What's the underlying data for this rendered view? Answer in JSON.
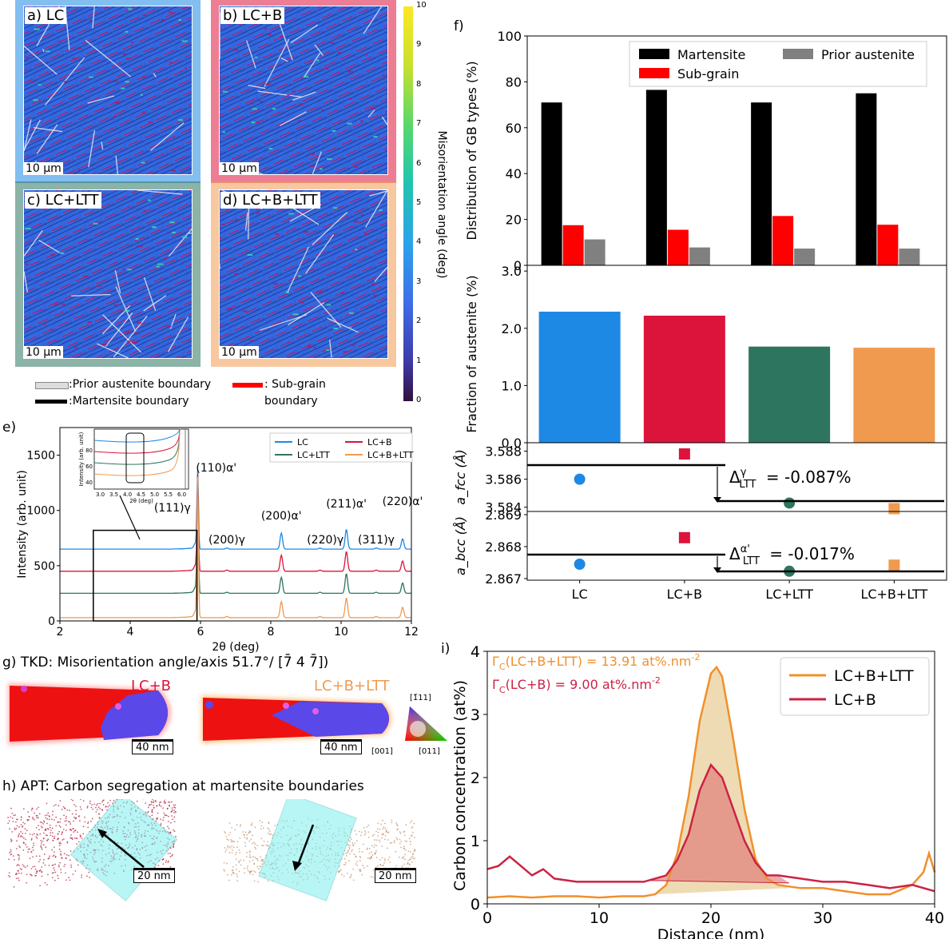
{
  "colors": {
    "lc": "#1e88e5",
    "lcb": "#dc143c",
    "lcltt": "#2e7560",
    "lcbltt": "#f09a50",
    "martensite": "#000000",
    "subgrain": "#ff0000",
    "prior": "#808080",
    "segB": "#cc2244",
    "segBLTT": "#f0902c"
  },
  "ebsd": {
    "panels": [
      {
        "label": "a) LC",
        "scale": "10 µm",
        "border": "#1e88e5"
      },
      {
        "label": "b) LC+B",
        "scale": "10 µm",
        "border": "#dc143c"
      },
      {
        "label": "c) LC+LTT",
        "scale": "10 µm",
        "border": "#2e7560"
      },
      {
        "label": "d) LC+B+LTT",
        "scale": "10 µm",
        "border": "#f09a50"
      }
    ],
    "legend": {
      "prior": ":Prior austenite boundary",
      "martensite": ":Martensite boundary",
      "subgrain_1": ": Sub-grain",
      "subgrain_2": "boundary"
    },
    "colorbar": {
      "label": "Misorientation angle (deg)",
      "ticks": [
        "0",
        "1",
        "2",
        "3",
        "4",
        "5",
        "6",
        "7",
        "8",
        "9",
        "10"
      ]
    }
  },
  "chart_data": [
    {
      "id": "e",
      "type": "line",
      "panel_label": "e)",
      "xlabel": "2θ (deg)",
      "ylabel": "Intensity (arb. unit)",
      "xlim": [
        2,
        12
      ],
      "ylim": [
        0,
        1750
      ],
      "xticks": [
        "2",
        "4",
        "6",
        "8",
        "10",
        "12"
      ],
      "yticks": [
        "0",
        "500",
        "1000",
        "1500"
      ],
      "series": [
        {
          "name": "LC",
          "offset": 650
        },
        {
          "name": "LC+B",
          "offset": 450
        },
        {
          "name": "LC+LTT",
          "offset": 250
        },
        {
          "name": "LC+B+LTT",
          "offset": 30
        }
      ],
      "peaks": [
        {
          "label": "(111)γ",
          "x": 5.85
        },
        {
          "label": "(110)α'",
          "x": 5.92
        },
        {
          "label": "(200)γ",
          "x": 6.75
        },
        {
          "label": "(200)α'",
          "x": 8.3
        },
        {
          "label": "(220)γ",
          "x": 9.4
        },
        {
          "label": "(211)α'",
          "x": 10.15
        },
        {
          "label": "(311)γ",
          "x": 11.0
        },
        {
          "label": "(220)α'",
          "x": 11.75
        }
      ],
      "inset": {
        "xlabel": "2θ (deg)",
        "ylabel": "Intensity (arb. unit)",
        "xticks": [
          "3.0",
          "3.5",
          "4.0",
          "4.5",
          "5.0",
          "5.5",
          "6.0"
        ],
        "yticks": [
          "40",
          "60",
          "80"
        ]
      }
    },
    {
      "id": "f",
      "type": "bar",
      "panel_label": "f)",
      "categories": [
        "LC",
        "LC+B",
        "LC+LTT",
        "LC+B+LTT"
      ],
      "ylabel": "Distribution of GB types (%)",
      "ylim": [
        0,
        100
      ],
      "yticks": [
        "0",
        "20",
        "40",
        "60",
        "80",
        "100"
      ],
      "series": [
        {
          "name": "Martensite",
          "values": [
            71,
            76.5,
            71,
            75
          ]
        },
        {
          "name": "Sub-grain",
          "values": [
            17.5,
            15.5,
            21.5,
            17.7
          ]
        },
        {
          "name": "Prior austenite",
          "values": [
            11.3,
            7.8,
            7.3,
            7.3
          ]
        }
      ]
    },
    {
      "id": "f2",
      "type": "bar",
      "categories": [
        "LC",
        "LC+B",
        "LC+LTT",
        "LC+B+LTT"
      ],
      "ylabel": "Fraction of austenite (%)",
      "ylim": [
        0,
        3.1
      ],
      "yticks": [
        "0.0",
        "1.0",
        "2.0",
        "3.0"
      ],
      "values": [
        2.29,
        2.22,
        1.68,
        1.66
      ]
    },
    {
      "id": "f3",
      "type": "scatter",
      "categories": [
        "LC",
        "LC+B",
        "LC+LTT",
        "LC+B+LTT"
      ],
      "ylabel": "a_fcc (Å)",
      "ylim": [
        3.5837,
        3.5886
      ],
      "yticks": [
        "3.584",
        "3.586",
        "3.588"
      ],
      "values": [
        3.586,
        3.5878,
        3.5843,
        3.5839
      ],
      "annotation": "= -0.087%",
      "delta_symbol": "Δ",
      "delta_sup": "γ",
      "delta_sub": "LTT"
    },
    {
      "id": "f4",
      "type": "scatter",
      "categories": [
        "LC",
        "LC+B",
        "LC+LTT",
        "LC+B+LTT"
      ],
      "ylabel": "a_bcc (Å)",
      "ylim": [
        2.86695,
        2.8691
      ],
      "yticks": [
        "2.867",
        "2.868",
        "2.869"
      ],
      "values": [
        2.86745,
        2.86828,
        2.86723,
        2.86742
      ],
      "annotation": "= -0.017%",
      "delta_symbol": "Δ",
      "delta_sup": "α'",
      "delta_sub": "LTT"
    },
    {
      "id": "i",
      "type": "area",
      "panel_label": "i)",
      "xlabel": "Distance (nm)",
      "ylabel": "Carbon concentration (at%)",
      "xlim": [
        0,
        40
      ],
      "ylim": [
        0,
        4
      ],
      "xticks": [
        "0",
        "10",
        "20",
        "30",
        "40"
      ],
      "yticks": [
        "0",
        "1",
        "2",
        "3",
        "4"
      ],
      "annotations": [
        {
          "text": "Γ",
          "sub": "C",
          "rest": "(LC+B+LTT) = 13.91 at%.nm",
          "sup": "-2"
        },
        {
          "text": "Γ",
          "sub": "C",
          "rest": "(LC+B) = 9.00 at%.nm",
          "sup": "-2"
        }
      ],
      "series": [
        {
          "name": "LC+B+LTT",
          "x": [
            0,
            2,
            4,
            6,
            8,
            10,
            12,
            14,
            15,
            16,
            17,
            18,
            19,
            20,
            20.5,
            21,
            22,
            23,
            24,
            25,
            26,
            28,
            30,
            32,
            34,
            36,
            38,
            39,
            39.5,
            40
          ],
          "y": [
            0.1,
            0.12,
            0.1,
            0.12,
            0.12,
            0.1,
            0.12,
            0.12,
            0.15,
            0.3,
            0.8,
            1.7,
            2.9,
            3.65,
            3.75,
            3.6,
            2.6,
            1.5,
            0.7,
            0.4,
            0.3,
            0.25,
            0.25,
            0.2,
            0.15,
            0.15,
            0.3,
            0.5,
            0.8,
            0.5
          ]
        },
        {
          "name": "LC+B",
          "x": [
            0,
            1,
            2,
            3,
            4,
            5,
            6,
            8,
            10,
            12,
            14,
            16,
            17,
            18,
            19,
            20,
            21,
            22,
            23,
            24,
            25,
            26,
            28,
            30,
            32,
            34,
            36,
            38,
            40
          ],
          "y": [
            0.55,
            0.6,
            0.75,
            0.6,
            0.45,
            0.55,
            0.4,
            0.35,
            0.35,
            0.35,
            0.35,
            0.45,
            0.7,
            1.1,
            1.8,
            2.2,
            2.0,
            1.5,
            1.0,
            0.65,
            0.45,
            0.45,
            0.4,
            0.35,
            0.35,
            0.3,
            0.25,
            0.3,
            0.2
          ]
        }
      ]
    }
  ],
  "tkd": {
    "title": "g) TKD:  Misorientation angle/axis 51.7°/ [7̄ 4 7̄])",
    "left_label": "LC+B",
    "right_label": "LC+B+LTT",
    "scale": "40 nm",
    "ipf_top": "[1̄11]",
    "ipf_left": "[001]",
    "ipf_right": "[011]"
  },
  "apt": {
    "title": "h) APT: Carbon segregation at martensite boundaries",
    "scale": "20 nm"
  },
  "panel_f_cats": [
    "LC",
    "LC+B",
    "LC+LTT",
    "LC+B+LTT"
  ]
}
